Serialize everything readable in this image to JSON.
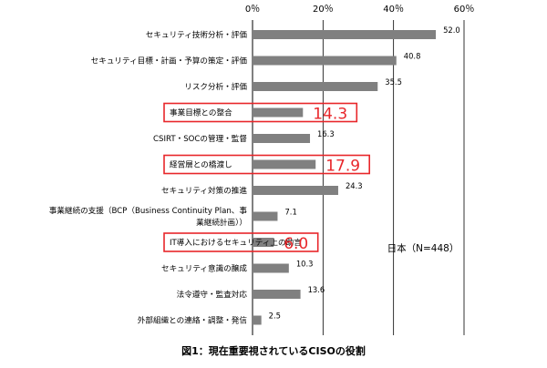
{
  "chart_data": {
    "type": "bar",
    "orientation": "horizontal",
    "categories": [
      "セキュリティ技術分析・評価",
      "セキュリティ目標・計画・予算の策定・評価",
      "リスク分析・評価",
      "事業目標との整合",
      "CSIRT・SOCの管理・監督",
      "経営層との橋渡し",
      "セキュリティ対策の推進",
      "事業継続の支援（BCP（Business Continuity Plan、事業継続計画））",
      "IT導入におけるセキュリティ上の助言",
      "セキュリティ意識の醸成",
      "法令遵守・監査対応",
      "外部組織との連絡・調整・発信"
    ],
    "category_lines": [
      [
        "セキュリティ技術分析・評価"
      ],
      [
        "セキュリティ目標・計画・予算の策定・評価"
      ],
      [
        "リスク分析・評価"
      ],
      [
        "事業目標との整合"
      ],
      [
        "CSIRT・SOCの管理・監督"
      ],
      [
        "経営層との橋渡し"
      ],
      [
        "セキュリティ対策の推進"
      ],
      [
        "事業継続の支援（BCP（Business Continuity Plan、事",
        "業継続計画））"
      ],
      [
        "IT導入におけるセキュリティ上の助言"
      ],
      [
        "セキュリティ意識の醸成"
      ],
      [
        "法令遵守・監査対応"
      ],
      [
        "外部組織との連絡・調整・発信"
      ]
    ],
    "values": [
      52.0,
      40.8,
      35.5,
      14.3,
      16.3,
      17.9,
      24.3,
      7.1,
      6.0,
      10.3,
      13.6,
      2.5
    ],
    "value_labels": [
      "52.0",
      "40.8",
      "35.5",
      "14.3",
      "16.3",
      "17.9",
      "24.3",
      "7.1",
      "6.0",
      "10.3",
      "13.6",
      "2.5"
    ],
    "highlighted": [
      3,
      5,
      8
    ],
    "xlim": [
      0,
      60
    ],
    "ticks": [
      0,
      20,
      40,
      60
    ],
    "tick_labels": [
      "0％",
      "20％",
      "40％",
      "60％"
    ],
    "grid": true,
    "legend_text": "日本（N=448）",
    "caption": "図1：現在重要視されているCISOの役割",
    "colors": {
      "bar": "#808080",
      "highlight": "#e8262a",
      "grid": "#000000",
      "text": "#000000"
    }
  }
}
